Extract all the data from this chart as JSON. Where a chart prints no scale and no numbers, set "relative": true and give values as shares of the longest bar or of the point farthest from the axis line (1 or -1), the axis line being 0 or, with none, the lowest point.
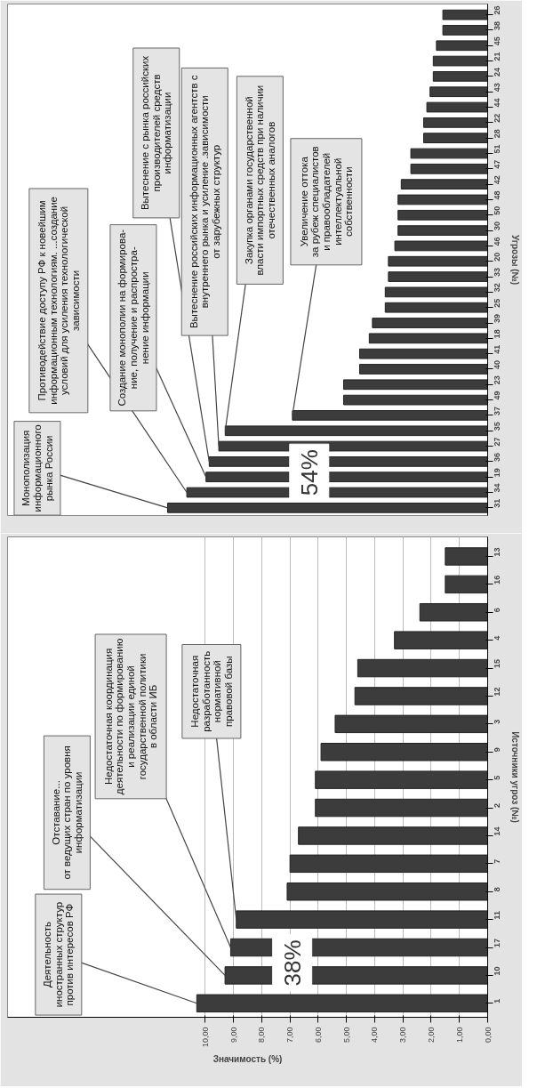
{
  "chart_data": [
    {
      "type": "bar",
      "orientation": "horizontal",
      "relative": true,
      "color": "#3c3c3c",
      "ylabel": "Угрозы (№)",
      "tick_labels": "y",
      "categories": [
        "26",
        "38",
        "45",
        "21",
        "24",
        "43",
        "44",
        "22",
        "28",
        "51",
        "47",
        "42",
        "48",
        "50",
        "30",
        "46",
        "20",
        "33",
        "32",
        "25",
        "39",
        "18",
        "41",
        "40",
        "23",
        "49",
        "37",
        "35",
        "27",
        "36",
        "19",
        "34",
        "31"
      ],
      "values": [
        0.14,
        0.14,
        0.16,
        0.17,
        0.17,
        0.18,
        0.19,
        0.2,
        0.2,
        0.24,
        0.24,
        0.27,
        0.28,
        0.28,
        0.28,
        0.29,
        0.31,
        0.31,
        0.32,
        0.32,
        0.36,
        0.37,
        0.4,
        0.4,
        0.45,
        0.45,
        0.61,
        0.82,
        0.84,
        0.87,
        0.88,
        0.94,
        1.0
      ],
      "annotations": [
        {
          "text": "Монополизация\nинформационного\nрынка России",
          "x": 1.0,
          "y": "31"
        },
        {
          "text": "Противодействие доступу РФ к новейшим\nинформационным технологиям. ...создание\nусловий для усиления технологической\nзависимости",
          "x": 0.94,
          "y": "34"
        },
        {
          "text": "Создание монополии на формирова-\nние, получение и распростра-\nнение информации",
          "x": 0.88,
          "y": "19"
        },
        {
          "text": "Вытеснение с рынка российских\nпроизводителей средств\nинформатизации",
          "x": 0.87,
          "y": "36"
        },
        {
          "text": "Вытеснение российских информационных агентств с\nвнутреннего рынка и усиление .зависимости\nот зарубежных структур",
          "x": 0.84,
          "y": "27"
        },
        {
          "text": "Закупка органами государственной\nвласти импортных средств при наличии\nотечественных аналогов",
          "x": 0.82,
          "y": "35"
        },
        {
          "text": "Увеличение оттока\nза рубеж специалистов\nи правообладателей\nинтеллектуальной\nсобственности",
          "x": 0.61,
          "y": "37"
        },
        "54%"
      ]
    },
    {
      "type": "bar",
      "orientation": "horizontal",
      "color": "#3c3c3c",
      "xlabel": "Значимость (%)",
      "ylabel": "Источники угроз (№)",
      "grid": "x",
      "categories": [
        "13",
        "16",
        "6",
        "4",
        "15",
        "12",
        "3",
        "9",
        "5",
        "2",
        "14",
        "7",
        "8",
        "11",
        "17",
        "10",
        "1"
      ],
      "values": [
        1.5,
        1.5,
        2.4,
        3.3,
        4.6,
        4.7,
        5.4,
        5.9,
        6.1,
        6.1,
        6.7,
        7.0,
        7.1,
        8.9,
        9.1,
        9.3,
        10.3
      ],
      "xlim": [
        17,
        0
      ],
      "xticks": [
        {
          "value": 0,
          "label": "0,00"
        },
        {
          "value": 1,
          "label": "1,00"
        },
        {
          "value": 2,
          "label": "2,00"
        },
        {
          "value": 3,
          "label": "3,00"
        },
        {
          "value": 4,
          "label": "4,00"
        },
        {
          "value": 5,
          "label": "5,00"
        },
        {
          "value": 6,
          "label": "6,00"
        },
        {
          "value": 7,
          "label": "7,00"
        },
        {
          "value": 8,
          "label": "8,00"
        },
        {
          "value": 9,
          "label": "9,00"
        },
        {
          "value": 10,
          "label": "10,00"
        }
      ],
      "annotations": [
        {
          "text": "Деятельность\nиностранных структур\nпротив интересов РФ",
          "x": 10.3,
          "y": "1"
        },
        {
          "text": "Отставание...\nот ведущих стран по уровня\nинформатизации",
          "x": 9.3,
          "y": "10"
        },
        {
          "text": "Недостаточная координация\nдеятельности по формированию\nи реализации единой\nгосударственной политики\nв области ИБ",
          "x": 9.1,
          "y": "17"
        },
        {
          "text": "Недостаточная\nразработанность\nнормативной\nправовой базы",
          "x": 8.9,
          "y": "11"
        },
        "38%"
      ]
    }
  ]
}
